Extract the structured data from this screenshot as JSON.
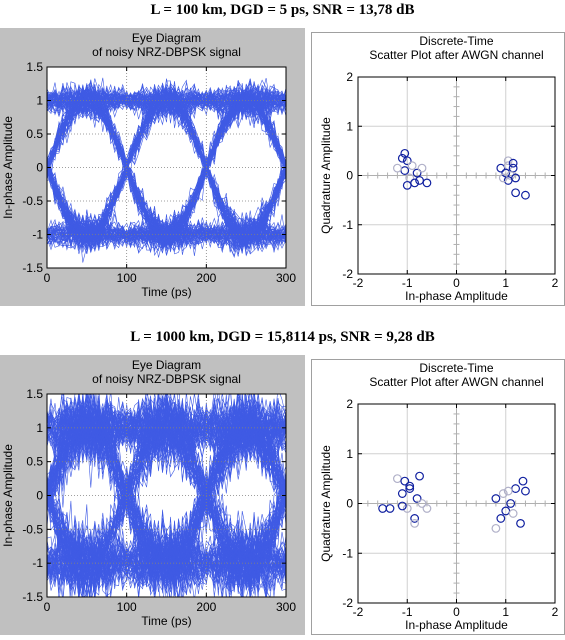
{
  "headings": [
    "L = 100 km, DGD = 5 ps, SNR = 13,78 dB",
    "L = 1000 km, DGD = 15,8114 ps, SNR = 9,28 dB"
  ],
  "colors": {
    "trace": "#1f3fe0",
    "marker": "#1020a0",
    "marker_light": "#b0b0c8",
    "grid": "#c8c8c8"
  },
  "chart_data": [
    {
      "type": "line",
      "title": "Eye Diagram\nof noisy NRZ-DBPSK signal",
      "xlabel": "Time (ps)",
      "ylabel": "In-phase Amplitude",
      "xlim": [
        0,
        300
      ],
      "ylim": [
        -1.5,
        1.5
      ],
      "xticks": [
        0,
        100,
        200,
        300
      ],
      "yticks": [
        -1.5,
        -1,
        -0.5,
        0,
        0.5,
        1,
        1.5
      ],
      "ytick_labels": [
        "-1.5",
        "-1",
        "-0.5",
        "0",
        "0.5",
        "1",
        "1.5"
      ],
      "grid": true,
      "series": [
        {
          "symbol_period_ps": 100,
          "level": 1,
          "noise_std": 0.12,
          "trace_count": 200
        }
      ]
    },
    {
      "type": "scatter",
      "title": "Discrete-Time\nScatter Plot after AWGN channel",
      "xlabel": "In-phase Amplitude",
      "ylabel": "Quadrature Amplitude",
      "xlim": [
        -2,
        2
      ],
      "ylim": [
        -2,
        2
      ],
      "xticks": [
        -2,
        -1,
        0,
        1,
        2
      ],
      "yticks": [
        -2,
        -1,
        0,
        1,
        2
      ],
      "grid": true,
      "series": [
        {
          "points": [
            [
              -1.1,
              0.35
            ],
            [
              -1.0,
              0.3
            ],
            [
              -0.9,
              0.2
            ],
            [
              -1.05,
              0.1
            ],
            [
              -0.8,
              0.05
            ],
            [
              -0.95,
              -0.05
            ],
            [
              -1.0,
              -0.2
            ],
            [
              -0.75,
              -0.1
            ],
            [
              -1.2,
              0.15
            ],
            [
              -0.85,
              -0.15
            ],
            [
              -1.05,
              0.45
            ],
            [
              -0.7,
              0.15
            ],
            [
              -0.6,
              -0.15
            ],
            [
              0.9,
              0.15
            ],
            [
              1.05,
              0.2
            ],
            [
              1.15,
              0.15
            ],
            [
              1.0,
              0.05
            ],
            [
              1.1,
              0.0
            ],
            [
              1.2,
              -0.05
            ],
            [
              1.05,
              -0.1
            ],
            [
              0.95,
              -0.05
            ],
            [
              1.4,
              -0.4
            ],
            [
              1.2,
              -0.35
            ],
            [
              1.05,
              0.3
            ],
            [
              1.15,
              0.25
            ]
          ]
        }
      ]
    },
    {
      "type": "line",
      "title": "Eye Diagram\nof noisy NRZ-DBPSK signal",
      "xlabel": "Time (ps)",
      "ylabel": "In-phase Amplitude",
      "xlim": [
        0,
        300
      ],
      "ylim": [
        -1.5,
        1.5
      ],
      "xticks": [
        0,
        100,
        200,
        300
      ],
      "yticks": [
        -1.5,
        -1,
        -0.5,
        0,
        0.5,
        1,
        1.5
      ],
      "ytick_labels": [
        "-1.5",
        "-1",
        "-0.5",
        "0",
        "0.5",
        "1",
        "1.5"
      ],
      "grid": true,
      "series": [
        {
          "symbol_period_ps": 100,
          "level": 1,
          "noise_std": 0.25,
          "trace_count": 200
        }
      ]
    },
    {
      "type": "scatter",
      "title": "Discrete-Time\nScatter Plot after AWGN channel",
      "xlabel": "In-phase Amplitude",
      "ylabel": "Quadrature Amplitude",
      "xlim": [
        -2,
        2
      ],
      "ylim": [
        -2,
        2
      ],
      "xticks": [
        -2,
        -1,
        0,
        1,
        2
      ],
      "yticks": [
        -2,
        -1,
        0,
        1,
        2
      ],
      "grid": true,
      "series": [
        {
          "points": [
            [
              -1.5,
              -0.1
            ],
            [
              -1.35,
              -0.1
            ],
            [
              -1.2,
              0.5
            ],
            [
              -1.1,
              0.2
            ],
            [
              -1.05,
              0.45
            ],
            [
              -1.0,
              -0.1
            ],
            [
              -0.95,
              0.35
            ],
            [
              -0.85,
              -0.3
            ],
            [
              -0.85,
              -0.4
            ],
            [
              -0.8,
              0.1
            ],
            [
              -0.75,
              0.55
            ],
            [
              -0.7,
              0.0
            ],
            [
              -1.1,
              -0.05
            ],
            [
              -0.95,
              0.3
            ],
            [
              -0.6,
              -0.1
            ],
            [
              0.8,
              0.1
            ],
            [
              0.9,
              -0.3
            ],
            [
              0.95,
              0.2
            ],
            [
              1.0,
              -0.15
            ],
            [
              1.1,
              0.0
            ],
            [
              1.15,
              -0.2
            ],
            [
              1.35,
              0.45
            ],
            [
              1.4,
              0.25
            ],
            [
              0.8,
              -0.5
            ],
            [
              1.3,
              -0.4
            ],
            [
              1.2,
              0.3
            ],
            [
              1.05,
              0.25
            ]
          ]
        }
      ]
    }
  ]
}
